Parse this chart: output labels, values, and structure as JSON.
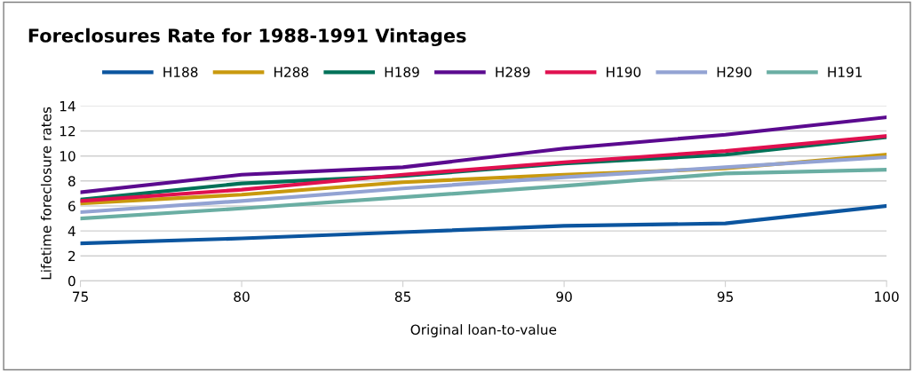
{
  "chart_data": {
    "type": "line",
    "title": "Foreclosures Rate for 1988-1991 Vintages",
    "xlabel": "Original loan-to-value",
    "ylabel": "Lifetime foreclosure rates",
    "x": [
      75,
      80,
      85,
      90,
      95,
      100
    ],
    "series": [
      {
        "name": "H188",
        "color": "#0b559f",
        "values": [
          3.0,
          3.4,
          3.9,
          4.4,
          4.6,
          6.0
        ]
      },
      {
        "name": "H288",
        "color": "#c9990e",
        "values": [
          6.2,
          6.9,
          7.9,
          8.5,
          9.0,
          10.1
        ]
      },
      {
        "name": "H189",
        "color": "#007158",
        "values": [
          6.5,
          7.8,
          8.4,
          9.4,
          10.1,
          11.5
        ]
      },
      {
        "name": "H289",
        "color": "#5b0a8f",
        "values": [
          7.1,
          8.5,
          9.1,
          10.6,
          11.7,
          13.1
        ]
      },
      {
        "name": "H190",
        "color": "#e0104f",
        "values": [
          6.4,
          7.3,
          8.5,
          9.5,
          10.4,
          11.6
        ]
      },
      {
        "name": "H290",
        "color": "#93a3d3",
        "values": [
          5.5,
          6.4,
          7.4,
          8.3,
          9.1,
          9.9
        ]
      },
      {
        "name": "H191",
        "color": "#6aaea3",
        "values": [
          5.0,
          5.8,
          6.7,
          7.6,
          8.6,
          8.9
        ]
      }
    ],
    "xlim": [
      75,
      100
    ],
    "xticks": [
      75,
      80,
      85,
      90,
      95,
      100
    ],
    "ylim": [
      0,
      14
    ],
    "yticks": [
      0,
      2,
      4,
      6,
      8,
      10,
      12,
      14
    ],
    "grid": "y",
    "legend": "top",
    "marker": "none",
    "line_style": "solid"
  }
}
